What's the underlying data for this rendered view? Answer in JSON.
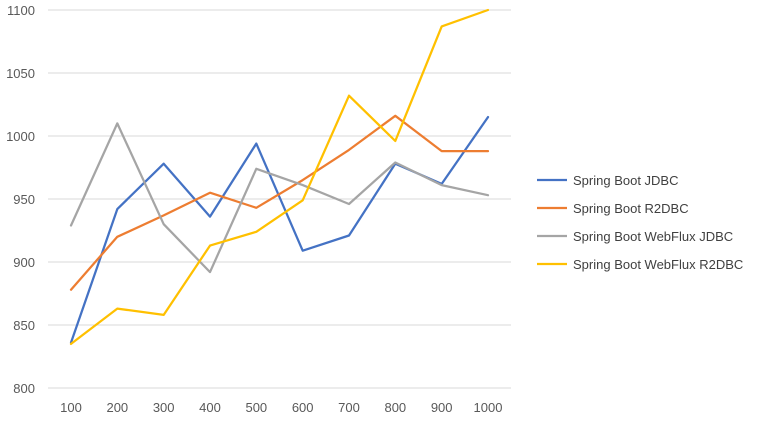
{
  "chart_data": {
    "type": "line",
    "title": "",
    "xlabel": "",
    "ylabel": "",
    "x": [
      100,
      200,
      300,
      400,
      500,
      600,
      700,
      800,
      900,
      1000
    ],
    "ylim": [
      800,
      1100
    ],
    "yticks": [
      800,
      850,
      900,
      950,
      1000,
      1050,
      1100
    ],
    "grid": "horizontal",
    "legend": "right",
    "series": [
      {
        "name": "Spring Boot JDBC",
        "color": "#4472C4",
        "values": [
          836,
          942,
          978,
          936,
          994,
          909,
          921,
          978,
          962,
          1015
        ]
      },
      {
        "name": "Spring Boot R2DBC",
        "color": "#ED7D31",
        "values": [
          878,
          920,
          937,
          955,
          943,
          965,
          989,
          1016,
          988,
          988
        ]
      },
      {
        "name": "Spring Boot WebFlux JDBC",
        "color": "#A5A5A5",
        "values": [
          929,
          1010,
          930,
          892,
          974,
          961,
          946,
          979,
          961,
          953
        ]
      },
      {
        "name": "Spring Boot WebFlux R2DBC",
        "color": "#FFC000",
        "values": [
          835,
          863,
          858,
          913,
          924,
          949,
          1032,
          996,
          1087,
          1101
        ]
      }
    ]
  }
}
